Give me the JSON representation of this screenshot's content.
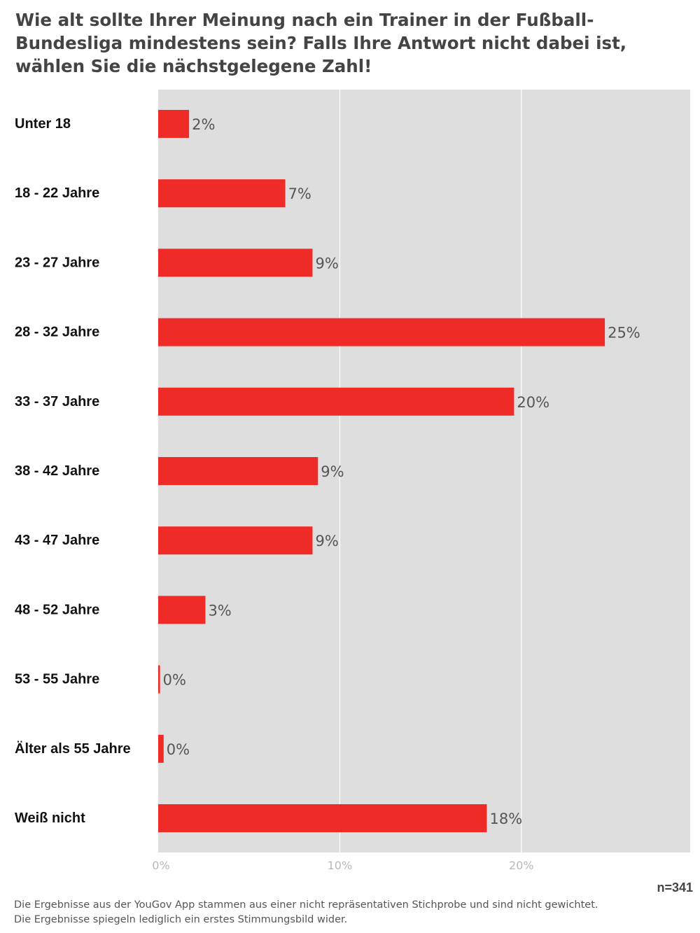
{
  "colors": {
    "bar": "#ee2b27",
    "plot_background": "#dedede",
    "gridline": "#ffffff"
  },
  "chart_data": {
    "type": "bar",
    "orientation": "horizontal",
    "title": "Wie alt sollte Ihrer Meinung nach ein Trainer in der Fußball-Bundesliga mindestens sein? Falls Ihre Antwort nicht dabei ist, wählen Sie die nächstgelegene Zahl!",
    "categories": [
      "Unter 18",
      "18 - 22 Jahre",
      "23 - 27 Jahre",
      "28 - 32 Jahre",
      "33 - 37 Jahre",
      "38 - 42 Jahre",
      "43 - 47 Jahre",
      "48 - 52 Jahre",
      "53 - 55 Jahre",
      "Älter als 55 Jahre",
      "Weiß nicht"
    ],
    "values": [
      1.7,
      7.0,
      8.5,
      24.6,
      19.6,
      8.8,
      8.5,
      2.6,
      0.1,
      0.3,
      18.1
    ],
    "value_labels": [
      "2%",
      "7%",
      "9%",
      "25%",
      "20%",
      "9%",
      "9%",
      "3%",
      "0%",
      "0%",
      "18%"
    ],
    "xlim": [
      0,
      29.3
    ],
    "xticks": [
      0,
      10,
      20
    ],
    "xtick_labels": [
      "0%",
      "10%",
      "20%"
    ],
    "grid": true,
    "legend": "none"
  },
  "sample_size": "n=341",
  "footnote": {
    "line1": "Die Ergebnisse aus der YouGov App stammen aus einer nicht repräsentativen Stichprobe und sind nicht gewichtet.",
    "line2": "Die Ergebnisse spiegeln lediglich ein erstes Stimmungsbild wider."
  }
}
